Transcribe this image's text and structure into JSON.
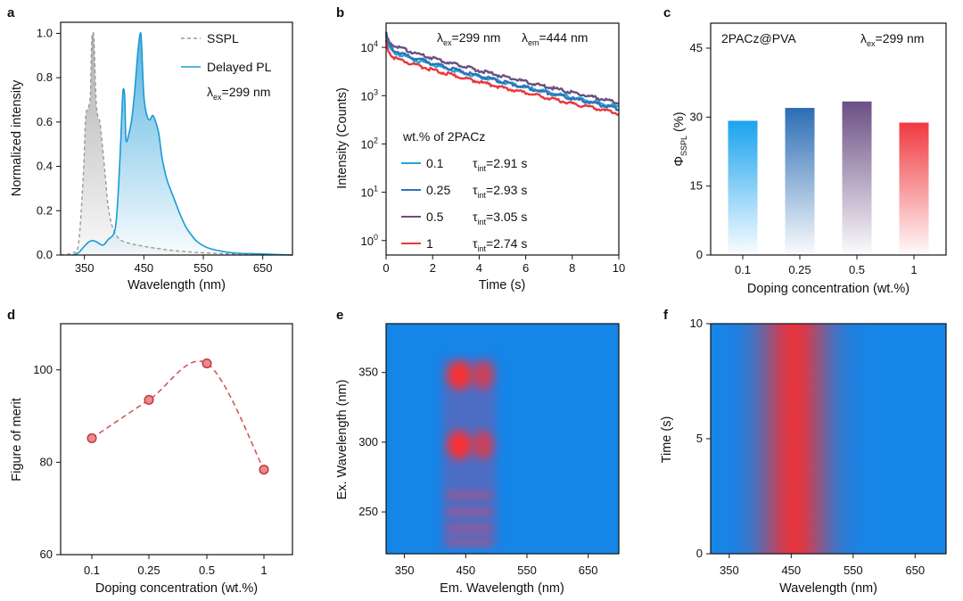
{
  "colors": {
    "sspl": "#9a9a9a",
    "delayed": "#1b9ad6",
    "s01": "#22a6d8",
    "s025": "#2f73b8",
    "s05": "#6b4f84",
    "s1": "#e8383e",
    "fom": "#d4555c",
    "map_bg": "#1685e8",
    "map_hot": "#ff3030"
  },
  "chart_data": [
    {
      "id": "a",
      "panel_label": "a",
      "type": "line",
      "xlabel": "Wavelength (nm)",
      "ylabel": "Normalized intensity",
      "xlim": [
        310,
        700
      ],
      "ylim": [
        0,
        1.05
      ],
      "xticks": [
        350,
        450,
        550,
        650
      ],
      "yticks": [
        "0.0",
        "0.2",
        "0.4",
        "0.6",
        "0.8",
        "1.0"
      ],
      "legend": [
        "SSPL",
        "Delayed PL"
      ],
      "annotation": {
        "base": "λ",
        "sub": "ex",
        "rest": "=299 nm"
      },
      "series": [
        {
          "name": "SSPL",
          "style": "dashed",
          "x": [
            310,
            330,
            340,
            348,
            352,
            356,
            360,
            362,
            364,
            366,
            368,
            370,
            373,
            376,
            380,
            385,
            390,
            398,
            410,
            430,
            460,
            500,
            550,
            600,
            700
          ],
          "y": [
            0.0,
            0.01,
            0.05,
            0.35,
            0.62,
            0.66,
            0.72,
            0.95,
            1.0,
            0.98,
            0.82,
            0.68,
            0.62,
            0.6,
            0.5,
            0.36,
            0.22,
            0.12,
            0.07,
            0.05,
            0.035,
            0.02,
            0.01,
            0.005,
            0.0
          ]
        },
        {
          "name": "Delayed PL",
          "style": "solid",
          "x": [
            330,
            340,
            350,
            358,
            364,
            370,
            376,
            382,
            390,
            400,
            405,
            410,
            414,
            416,
            418,
            420,
            425,
            430,
            435,
            440,
            444,
            446,
            450,
            455,
            460,
            465,
            470,
            475,
            480,
            485,
            490,
            500,
            510,
            520,
            530,
            540,
            560,
            600,
            650,
            700
          ],
          "y": [
            0.0,
            0.01,
            0.04,
            0.06,
            0.065,
            0.06,
            0.05,
            0.045,
            0.07,
            0.1,
            0.2,
            0.45,
            0.7,
            0.75,
            0.7,
            0.52,
            0.55,
            0.62,
            0.75,
            0.92,
            1.0,
            0.96,
            0.72,
            0.63,
            0.61,
            0.63,
            0.6,
            0.55,
            0.45,
            0.38,
            0.33,
            0.26,
            0.19,
            0.13,
            0.09,
            0.06,
            0.03,
            0.01,
            0.005,
            0.0
          ]
        }
      ]
    },
    {
      "id": "b",
      "panel_label": "b",
      "type": "line",
      "xlabel": "Time (s)",
      "ylabel": "Intensity (Counts)",
      "xlim": [
        0,
        10
      ],
      "ylim_log10": [
        -0.3,
        4.5
      ],
      "xticks": [
        "0",
        "2",
        "4",
        "6",
        "8",
        "10"
      ],
      "yticks": [
        {
          "exp": 0,
          "base": "10",
          "sup": "0"
        },
        {
          "exp": 1,
          "base": "10",
          "sup": "1"
        },
        {
          "exp": 2,
          "base": "10",
          "sup": "2"
        },
        {
          "exp": 3,
          "base": "10",
          "sup": "3"
        },
        {
          "exp": 4,
          "base": "10",
          "sup": "4"
        }
      ],
      "annotation_ex": {
        "base": "λ",
        "sub": "ex",
        "rest": "=299 nm"
      },
      "annotation_em": {
        "base": "λ",
        "sub": "em",
        "rest": "=444 nm"
      },
      "legend_title": "wt.% of 2PACz",
      "series": [
        {
          "name": "0.1",
          "tau": {
            "base": "τ",
            "sub": "int",
            "rest": "=2.91 s"
          },
          "log_start": 4.22,
          "log_knee": 3.9,
          "log_end": 2.76
        },
        {
          "name": "0.25",
          "tau": {
            "base": "τ",
            "sub": "int",
            "rest": "=2.93 s"
          },
          "log_start": 4.25,
          "log_knee": 3.95,
          "log_end": 2.72
        },
        {
          "name": "0.5",
          "tau": {
            "base": "τ",
            "sub": "int",
            "rest": "=3.05 s"
          },
          "log_start": 4.3,
          "log_knee": 4.05,
          "log_end": 2.85
        },
        {
          "name": "1",
          "tau": {
            "base": "τ",
            "sub": "int",
            "rest": "=2.74 s"
          },
          "log_start": 4.15,
          "log_knee": 3.8,
          "log_end": 2.63
        }
      ]
    },
    {
      "id": "c",
      "panel_label": "c",
      "type": "bar",
      "xlabel": "Doping concentration (wt.%)",
      "ylabel": {
        "base": "Φ",
        "sub": "SSPL",
        "rest": " (%)"
      },
      "categories": [
        "0.1",
        "0.25",
        "0.5",
        "1"
      ],
      "values": [
        29.2,
        32.0,
        33.4,
        28.8
      ],
      "ylim": [
        0,
        45
      ],
      "yticks": [
        "0",
        "15",
        "30",
        "45"
      ],
      "annotation_left": "2PACz@PVA",
      "annotation_right": {
        "base": "λ",
        "sub": "ex",
        "rest": "=299 nm"
      }
    },
    {
      "id": "d",
      "panel_label": "d",
      "type": "scatter",
      "xlabel": "Doping concentration (wt.%)",
      "ylabel": "Figure of merit",
      "categories": [
        "0.1",
        "0.25",
        "0.5",
        "1"
      ],
      "values": [
        85.2,
        93.5,
        101.4,
        78.4
      ],
      "ylim": [
        60,
        110
      ],
      "yticks": [
        "60",
        "80",
        "100"
      ]
    },
    {
      "id": "e",
      "panel_label": "e",
      "type": "heatmap",
      "xlabel": "Em. Wavelength (nm)",
      "ylabel": "Ex. Wavelength (nm)",
      "xlim": [
        320,
        700
      ],
      "ylim": [
        220,
        385
      ],
      "xticks": [
        "350",
        "450",
        "550",
        "650"
      ],
      "yticks": [
        "250",
        "300",
        "350"
      ],
      "hotspots_em": [
        440,
        478
      ],
      "hotspots_ex": [
        348,
        298
      ],
      "band_ex": [
        262,
        250,
        238,
        228
      ],
      "em_range": [
        412,
        500
      ]
    },
    {
      "id": "f",
      "panel_label": "f",
      "type": "heatmap",
      "xlabel": "Wavelength (nm)",
      "ylabel": "Time (s)",
      "xlim": [
        320,
        700
      ],
      "ylim": [
        0,
        10
      ],
      "xticks": [
        "350",
        "450",
        "550",
        "650"
      ],
      "yticks": [
        "0",
        "5",
        "10"
      ],
      "peak_nm": 455,
      "width_nm": 60
    }
  ]
}
